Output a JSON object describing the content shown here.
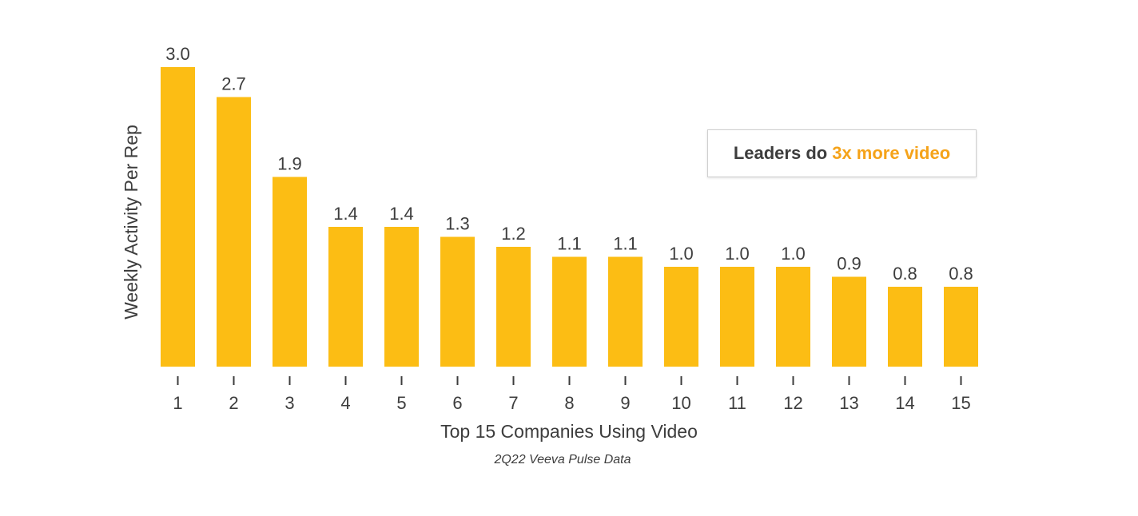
{
  "colors": {
    "bar": "#fcbd14",
    "text": "#3d3d3d",
    "accent": "#f5a31a",
    "tick": "#3d3d3d"
  },
  "callout": {
    "prefix": "Leaders do",
    "highlight": "3x more video"
  },
  "chart_data": {
    "type": "bar",
    "categories": [
      "1",
      "2",
      "3",
      "4",
      "5",
      "6",
      "7",
      "8",
      "9",
      "10",
      "11",
      "12",
      "13",
      "14",
      "15"
    ],
    "values": [
      3.0,
      2.7,
      1.9,
      1.4,
      1.4,
      1.3,
      1.2,
      1.1,
      1.1,
      1.0,
      1.0,
      1.0,
      0.9,
      0.8,
      0.8
    ],
    "data_labels": [
      "3.0",
      "2.7",
      "1.9",
      "1.4",
      "1.4",
      "1.3",
      "1.2",
      "1.1",
      "1.1",
      "1.0",
      "1.0",
      "1.0",
      "0.9",
      "0.8",
      "0.8"
    ],
    "xlabel": "Top 15 Companies Using Video",
    "ylabel": "Weekly Activity Per Rep",
    "source": "2Q22 Veeva Pulse Data",
    "ylim": [
      0,
      3.0
    ],
    "grid": false,
    "legend": "none"
  }
}
